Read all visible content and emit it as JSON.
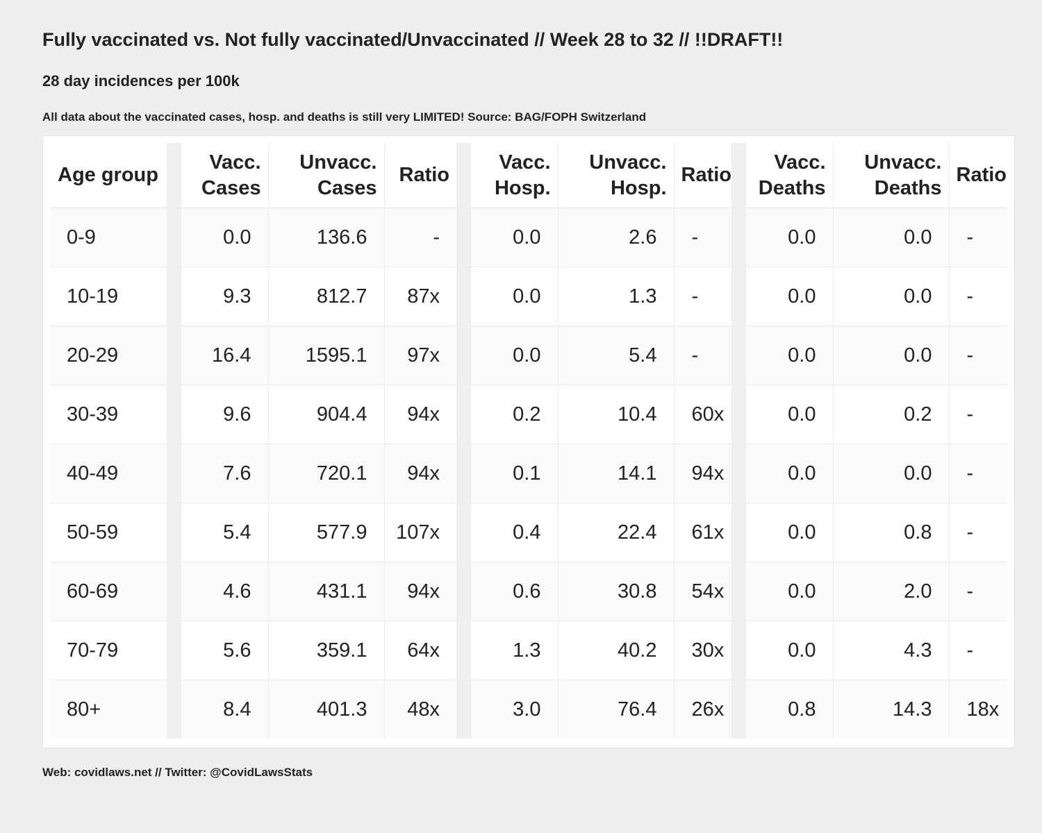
{
  "header": {
    "title": "Fully vaccinated vs. Not fully vaccinated/Unvaccinated // Week 28 to 32 // !!DRAFT!!",
    "subtitle": "28 day incidences per 100k",
    "note": "All data about the vaccinated cases, hosp. and deaths is still very LIMITED! Source: BAG/FOPH Switzerland"
  },
  "footer": {
    "text": "Web: covidlaws.net // Twitter: @CovidLawsStats"
  },
  "columns": {
    "age": "Age group",
    "vacc_cases": [
      "Vacc.",
      "Cases"
    ],
    "unvacc_cases": [
      "Unvacc.",
      "Cases"
    ],
    "ratio_cases": "Ratio",
    "vacc_hosp": [
      "Vacc.",
      "Hosp."
    ],
    "unvacc_hosp": [
      "Unvacc.",
      "Hosp."
    ],
    "ratio_hosp": "Ratio",
    "vacc_deaths": [
      "Vacc.",
      "Deaths"
    ],
    "unvacc_deaths": [
      "Unvacc.",
      "Deaths"
    ],
    "ratio_deaths": "Ratio"
  },
  "chart_data": {
    "type": "table",
    "title": "Fully vaccinated vs. Not fully vaccinated/Unvaccinated // Week 28 to 32 // !!DRAFT!!",
    "subtitle": "28 day incidences per 100k",
    "headers": [
      "Age group",
      "Vacc. Cases",
      "Unvacc. Cases",
      "Ratio",
      "Vacc. Hosp.",
      "Unvacc. Hosp.",
      "Ratio",
      "Vacc. Deaths",
      "Unvacc. Deaths",
      "Ratio"
    ],
    "rows": [
      [
        "0-9",
        "0.0",
        "136.6",
        "-",
        "0.0",
        "2.6",
        "-",
        "0.0",
        "0.0",
        "-"
      ],
      [
        "10-19",
        "9.3",
        "812.7",
        "87x",
        "0.0",
        "1.3",
        "-",
        "0.0",
        "0.0",
        "-"
      ],
      [
        "20-29",
        "16.4",
        "1595.1",
        "97x",
        "0.0",
        "5.4",
        "-",
        "0.0",
        "0.0",
        "-"
      ],
      [
        "30-39",
        "9.6",
        "904.4",
        "94x",
        "0.2",
        "10.4",
        "60x",
        "0.0",
        "0.2",
        "-"
      ],
      [
        "40-49",
        "7.6",
        "720.1",
        "94x",
        "0.1",
        "14.1",
        "94x",
        "0.0",
        "0.0",
        "-"
      ],
      [
        "50-59",
        "5.4",
        "577.9",
        "107x",
        "0.4",
        "22.4",
        "61x",
        "0.0",
        "0.8",
        "-"
      ],
      [
        "60-69",
        "4.6",
        "431.1",
        "94x",
        "0.6",
        "30.8",
        "54x",
        "0.0",
        "2.0",
        "-"
      ],
      [
        "70-79",
        "5.6",
        "359.1",
        "64x",
        "1.3",
        "40.2",
        "30x",
        "0.0",
        "4.3",
        "-"
      ],
      [
        "80+",
        "8.4",
        "401.3",
        "48x",
        "3.0",
        "76.4",
        "26x",
        "0.8",
        "14.3",
        "18x"
      ]
    ]
  },
  "colors": {
    "background": "#edeeed",
    "card": "#ffffff",
    "separator": "#eeefee",
    "text": "#222222"
  }
}
